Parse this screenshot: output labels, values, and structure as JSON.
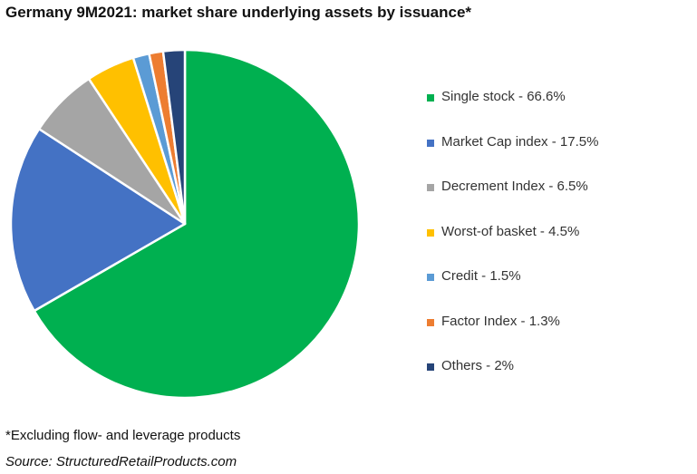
{
  "title": "Germany 9M2021: market share underlying assets by issuance*",
  "footnote": "*Excluding flow- and leverage products",
  "source": "Source: StructuredRetailProducts.com",
  "legend_position": "right",
  "chart_data": {
    "type": "pie",
    "title": "Germany 9M2021: market share underlying assets by issuance*",
    "categories": [
      "Single stock",
      "Market Cap index",
      "Decrement Index",
      "Worst-of basket",
      "Credit",
      "Factor Index",
      "Others"
    ],
    "values": [
      66.6,
      17.5,
      6.5,
      4.5,
      1.5,
      1.3,
      2
    ],
    "unit": "%",
    "colors": [
      "#00b050",
      "#4472c4",
      "#a5a5a5",
      "#ffc000",
      "#5b9bd5",
      "#ed7d31",
      "#264478"
    ],
    "legend_labels": [
      "Single stock - 66.6%",
      "Market Cap index - 17.5%",
      "Decrement Index - 6.5%",
      "Worst-of basket - 4.5%",
      "Credit - 1.5%",
      "Factor Index - 1.3%",
      "Others - 2%"
    ],
    "start_angle_deg": 0,
    "direction": "clockwise",
    "legend": "right"
  }
}
